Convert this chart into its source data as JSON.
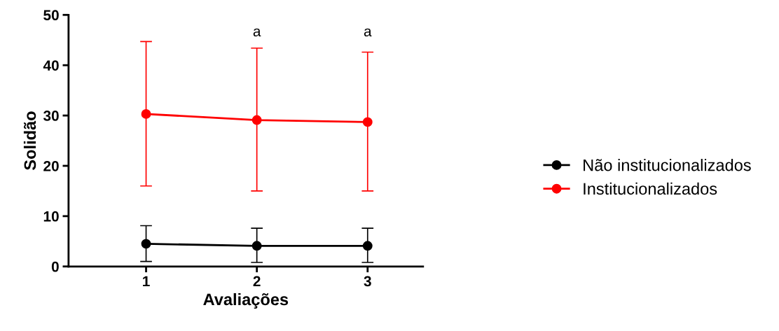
{
  "chart_data": {
    "type": "line",
    "xlabel": "Avaliações",
    "ylabel": "Solidão",
    "x": [
      1,
      2,
      3
    ],
    "xlim": [
      0.3,
      3.5
    ],
    "xticks": [
      1,
      2,
      3
    ],
    "ylim": [
      0,
      50
    ],
    "yticks": [
      0,
      10,
      20,
      30,
      40,
      50
    ],
    "series": [
      {
        "name": "Não institucionalizados",
        "color": "#000000",
        "values": [
          4.5,
          4.1,
          4.1
        ],
        "errors": [
          [
            1.0,
            8.1
          ],
          [
            0.8,
            7.6
          ],
          [
            0.8,
            7.6
          ]
        ]
      },
      {
        "name": "Institucionalizados",
        "color": "#ff0000",
        "values": [
          30.3,
          29.1,
          28.7
        ],
        "errors": [
          [
            16.0,
            44.7
          ],
          [
            15.0,
            43.4
          ],
          [
            15.0,
            42.6
          ]
        ]
      }
    ],
    "annotations": [
      "a",
      "a"
    ],
    "marker": "circle",
    "line_style": "solid",
    "grid": false,
    "legend": "right"
  }
}
